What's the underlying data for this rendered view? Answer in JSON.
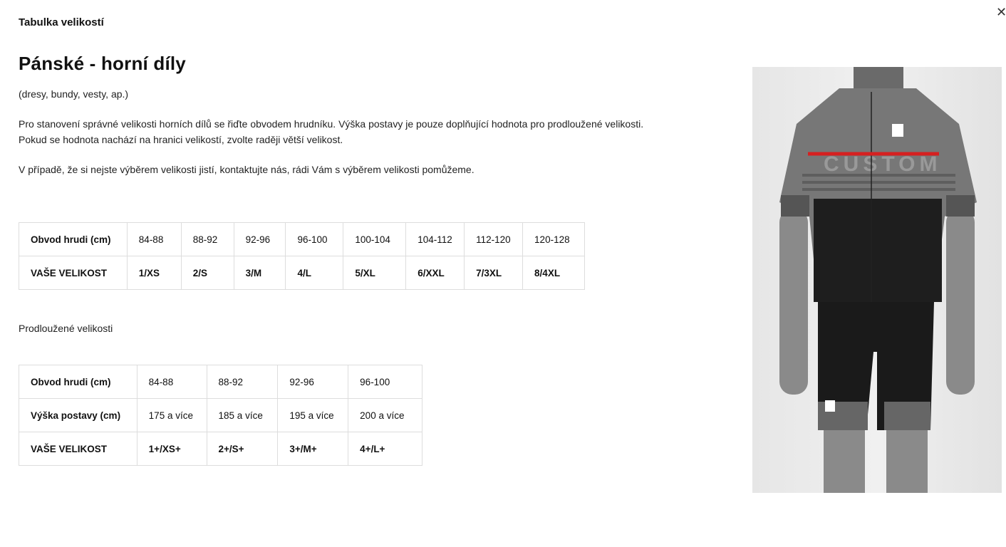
{
  "modal": {
    "title": "Tabulka velikostí",
    "close_icon": "close-icon"
  },
  "heading": "Pánské - horní díly",
  "subtitle": "(dresy, bundy, vesty, ap.)",
  "paragraph1_line1": "Pro stanovení správné velikosti horních dílů se řiďte obvodem hrudníku. Výška postavy je pouze doplňující hodnota pro prodloužené velikosti.",
  "paragraph1_line2": "Pokud se hodnota nachází na hranici velikostí, zvolte raději větší velikost.",
  "paragraph2": "V případě, že si nejste výběrem velikosti jistí, kontaktujte nás, rádi Vám s výběrem velikosti pomůžeme.",
  "table1": {
    "rows": [
      [
        "Obvod hrudi (cm)",
        "84-88",
        "88-92",
        "92-96",
        "96-100",
        "100-104",
        "104-112",
        "112-120",
        "120-128"
      ],
      [
        "VAŠE VELIKOST",
        "1/XS",
        "2/S",
        "3/M",
        "4/L",
        "5/XL",
        "6/XXL",
        "7/3XL",
        "8/4XL"
      ]
    ]
  },
  "extended_label": "Prodloužené velikosti",
  "table2": {
    "rows": [
      [
        "Obvod hrudi (cm)",
        "84-88",
        "88-92",
        "92-96",
        "96-100"
      ],
      [
        "Výška postavy (cm)",
        "175 a více",
        "185 a více",
        "195 a více",
        "200 a více"
      ],
      [
        "VAŠE VELIKOST",
        "1+/XS+",
        "2+/S+",
        "3+/M+",
        "4+/L+"
      ]
    ]
  },
  "photo": {
    "jersey_text": "CUSTOM",
    "measure_color": "#d62020"
  }
}
